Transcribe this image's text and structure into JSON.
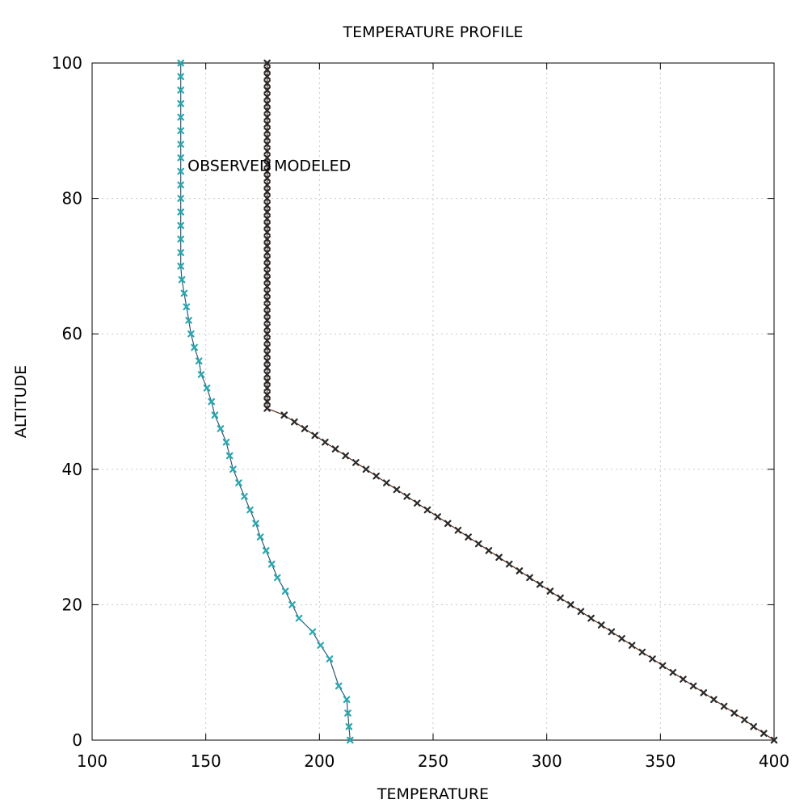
{
  "chart_data": {
    "type": "line",
    "title": "TEMPERATURE PROFILE",
    "xlabel": "TEMPERATURE",
    "ylabel": "ALTITUDE",
    "xlim": [
      100,
      400
    ],
    "ylim": [
      0,
      100
    ],
    "x_ticks": [
      100,
      150,
      200,
      250,
      300,
      350,
      400
    ],
    "y_ticks": [
      0,
      20,
      40,
      60,
      80,
      100
    ],
    "grid": true,
    "annotations": [
      {
        "text": "OBSERVED",
        "x": 142,
        "y": 85
      },
      {
        "text": "MODELED",
        "x": 180,
        "y": 85
      }
    ],
    "series": [
      {
        "color": "#2aa8b0",
        "line_color": "#2f5a78",
        "marker": "x",
        "points": [
          [
            213.5,
            0
          ],
          [
            213.0,
            2
          ],
          [
            212.5,
            4
          ],
          [
            212.0,
            6
          ],
          [
            208.5,
            8
          ],
          [
            204.5,
            12
          ],
          [
            200.5,
            14
          ],
          [
            197.0,
            16
          ],
          [
            191.0,
            18
          ],
          [
            188.0,
            20
          ],
          [
            185.0,
            22
          ],
          [
            181.5,
            24
          ],
          [
            179.0,
            26
          ],
          [
            176.5,
            28
          ],
          [
            174.0,
            30
          ],
          [
            172.0,
            32
          ],
          [
            169.5,
            34
          ],
          [
            167.0,
            36
          ],
          [
            164.5,
            38
          ],
          [
            162.0,
            40
          ],
          [
            160.5,
            42
          ],
          [
            159.0,
            44
          ],
          [
            156.5,
            46
          ],
          [
            154.0,
            48
          ],
          [
            152.5,
            50
          ],
          [
            150.5,
            52
          ],
          [
            148.0,
            54
          ],
          [
            147.0,
            56
          ],
          [
            145.0,
            58
          ],
          [
            143.5,
            60
          ],
          [
            142.5,
            62
          ],
          [
            141.5,
            64
          ],
          [
            140.5,
            66
          ],
          [
            139.5,
            68
          ],
          [
            139.0,
            70
          ],
          [
            139.0,
            72
          ],
          [
            139.0,
            74
          ],
          [
            139.0,
            76
          ],
          [
            139.0,
            78
          ],
          [
            139.0,
            80
          ],
          [
            139.0,
            82
          ],
          [
            139.0,
            84
          ],
          [
            139.0,
            86
          ],
          [
            139.0,
            88
          ],
          [
            139.0,
            90
          ],
          [
            139.0,
            92
          ],
          [
            139.0,
            94
          ],
          [
            139.0,
            96
          ],
          [
            139.0,
            98
          ],
          [
            139.0,
            100
          ]
        ]
      },
      {
        "color": "#2a2a2a",
        "line_color": "#5a2a1a",
        "marker": "x",
        "points": [
          [
            400.0,
            0
          ],
          [
            395.5,
            1
          ],
          [
            391.0,
            2
          ],
          [
            387.0,
            3
          ],
          [
            382.5,
            4
          ],
          [
            378.0,
            5
          ],
          [
            373.5,
            6
          ],
          [
            369.0,
            7
          ],
          [
            364.5,
            8
          ],
          [
            360.0,
            9
          ],
          [
            355.5,
            10
          ],
          [
            351.0,
            11
          ],
          [
            346.5,
            12
          ],
          [
            342.0,
            13
          ],
          [
            337.5,
            14
          ],
          [
            333.0,
            15
          ],
          [
            328.5,
            16
          ],
          [
            324.0,
            17
          ],
          [
            319.5,
            18
          ],
          [
            315.0,
            19
          ],
          [
            310.5,
            20
          ],
          [
            306.0,
            21
          ],
          [
            301.5,
            22
          ],
          [
            297.0,
            23
          ],
          [
            292.5,
            24
          ],
          [
            288.0,
            25
          ],
          [
            283.5,
            26
          ],
          [
            279.0,
            27
          ],
          [
            274.5,
            28
          ],
          [
            270.0,
            29
          ],
          [
            265.5,
            30
          ],
          [
            261.0,
            31
          ],
          [
            256.5,
            32
          ],
          [
            252.0,
            33
          ],
          [
            247.5,
            34
          ],
          [
            243.0,
            35
          ],
          [
            238.5,
            36
          ],
          [
            234.0,
            37
          ],
          [
            229.5,
            38
          ],
          [
            225.0,
            39
          ],
          [
            220.5,
            40
          ],
          [
            216.0,
            41
          ],
          [
            211.5,
            42
          ],
          [
            207.0,
            43
          ],
          [
            202.5,
            44
          ],
          [
            198.0,
            45
          ],
          [
            193.5,
            46
          ],
          [
            189.0,
            47
          ],
          [
            184.5,
            48
          ],
          [
            177.0,
            49
          ],
          [
            177.0,
            50
          ],
          [
            177.0,
            51
          ],
          [
            177.0,
            52
          ],
          [
            177.0,
            53
          ],
          [
            177.0,
            54
          ],
          [
            177.0,
            55
          ],
          [
            177.0,
            56
          ],
          [
            177.0,
            57
          ],
          [
            177.0,
            58
          ],
          [
            177.0,
            59
          ],
          [
            177.0,
            60
          ],
          [
            177.0,
            61
          ],
          [
            177.0,
            62
          ],
          [
            177.0,
            63
          ],
          [
            177.0,
            64
          ],
          [
            177.0,
            65
          ],
          [
            177.0,
            66
          ],
          [
            177.0,
            67
          ],
          [
            177.0,
            68
          ],
          [
            177.0,
            69
          ],
          [
            177.0,
            70
          ],
          [
            177.0,
            71
          ],
          [
            177.0,
            72
          ],
          [
            177.0,
            73
          ],
          [
            177.0,
            74
          ],
          [
            177.0,
            75
          ],
          [
            177.0,
            76
          ],
          [
            177.0,
            77
          ],
          [
            177.0,
            78
          ],
          [
            177.0,
            79
          ],
          [
            177.0,
            80
          ],
          [
            177.0,
            81
          ],
          [
            177.0,
            82
          ],
          [
            177.0,
            83
          ],
          [
            177.0,
            84
          ],
          [
            177.0,
            85
          ],
          [
            177.0,
            86
          ],
          [
            177.0,
            87
          ],
          [
            177.0,
            88
          ],
          [
            177.0,
            89
          ],
          [
            177.0,
            90
          ],
          [
            177.0,
            91
          ],
          [
            177.0,
            92
          ],
          [
            177.0,
            93
          ],
          [
            177.0,
            94
          ],
          [
            177.0,
            95
          ],
          [
            177.0,
            96
          ],
          [
            177.0,
            97
          ],
          [
            177.0,
            98
          ],
          [
            177.0,
            99
          ],
          [
            177.0,
            100
          ]
        ]
      }
    ]
  }
}
